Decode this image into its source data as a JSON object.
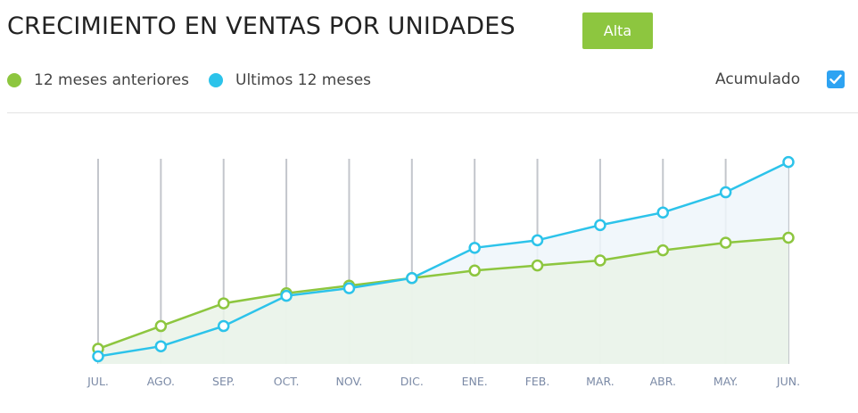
{
  "header": {
    "title": "CRECIMIENTO EN VENTAS POR UNIDADES",
    "badge": "Alta"
  },
  "legend": {
    "items": [
      {
        "label": "12 meses anteriores",
        "color": "#8dc63f"
      },
      {
        "label": "Ultimos 12 meses",
        "color": "#2cc3ea"
      }
    ]
  },
  "controls": {
    "accumulated_label": "Acumulado",
    "accumulated_checked": true
  },
  "chart_data": {
    "type": "area",
    "categories": [
      "JUL.",
      "AGO.",
      "SEP.",
      "OCT.",
      "NOV.",
      "DIC.",
      "ENE.",
      "FEB.",
      "MAR.",
      "ABR.",
      "MAY.",
      "JUN."
    ],
    "ylim": [
      0,
      100
    ],
    "grid": "vertical",
    "series": [
      {
        "name": "12 meses anteriores",
        "color": "#8dc63f",
        "fill": "#eaf3e8",
        "values": [
          6,
          15,
          24,
          28,
          31,
          34,
          37,
          39,
          41,
          45,
          48,
          50
        ]
      },
      {
        "name": "Ultimos 12 meses",
        "color": "#2cc3ea",
        "fill": "#eef6fa",
        "values": [
          3,
          7,
          15,
          27,
          30,
          34,
          46,
          49,
          55,
          60,
          68,
          80
        ]
      }
    ]
  }
}
